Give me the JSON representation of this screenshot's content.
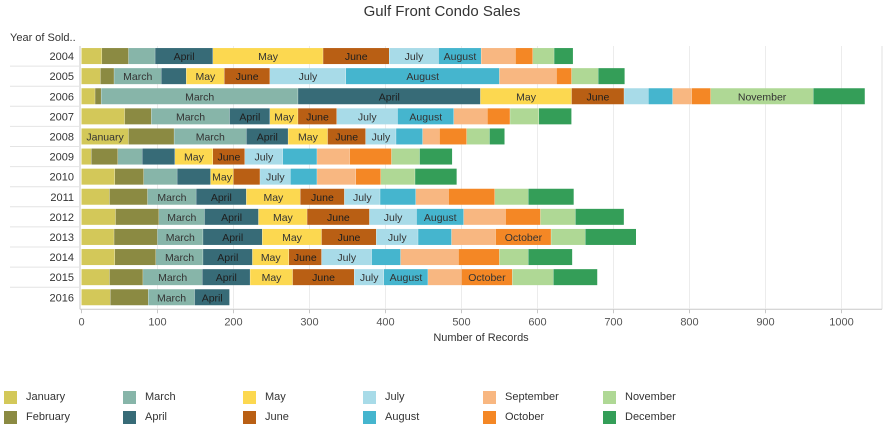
{
  "chart_data": {
    "type": "bar",
    "orientation": "horizontal",
    "stacked": true,
    "title": "Gulf Front Condo Sales",
    "ylabel": "Year of Sold..",
    "xlabel": "Number of Records",
    "xlim": [
      0,
      1050
    ],
    "xticks": [
      0,
      100,
      200,
      300,
      400,
      500,
      600,
      700,
      800,
      900,
      1000
    ],
    "grid": "vertical gridlines",
    "legend_position": "bottom",
    "categories": [
      "2004",
      "2005",
      "2006",
      "2007",
      "2008",
      "2009",
      "2010",
      "2011",
      "2012",
      "2013",
      "2014",
      "2015",
      "2016"
    ],
    "series": [
      {
        "name": "January",
        "color": "#d3c859",
        "values": [
          27,
          25,
          18,
          57,
          62,
          13,
          44,
          37,
          45,
          43,
          44,
          37,
          38
        ]
      },
      {
        "name": "February",
        "color": "#8b8a42",
        "values": [
          35,
          18,
          8,
          35,
          60,
          35,
          38,
          50,
          57,
          57,
          54,
          44,
          50
        ]
      },
      {
        "name": "March",
        "color": "#87b5a9",
        "values": [
          35,
          62,
          259,
          103,
          95,
          32,
          44,
          64,
          60,
          60,
          62,
          78,
          61
        ]
      },
      {
        "name": "April",
        "color": "#376b77",
        "values": [
          76,
          33,
          240,
          53,
          55,
          43,
          44,
          66,
          71,
          78,
          65,
          63,
          46
        ]
      },
      {
        "name": "May",
        "color": "#fcd850",
        "values": [
          145,
          50,
          120,
          37,
          52,
          50,
          30,
          71,
          64,
          78,
          48,
          56,
          0
        ]
      },
      {
        "name": "June",
        "color": "#b95f14",
        "values": [
          87,
          60,
          69,
          51,
          50,
          42,
          35,
          58,
          82,
          72,
          43,
          81,
          0
        ]
      },
      {
        "name": "July",
        "color": "#a8dbe8",
        "values": [
          65,
          100,
          32,
          80,
          40,
          50,
          40,
          47,
          62,
          55,
          66,
          39,
          0
        ]
      },
      {
        "name": "August",
        "color": "#45b5ce",
        "values": [
          56,
          202,
          32,
          74,
          35,
          45,
          35,
          47,
          62,
          44,
          38,
          58,
          0
        ]
      },
      {
        "name": "September",
        "color": "#f8b781",
        "values": [
          45,
          75,
          25,
          44,
          22,
          43,
          51,
          43,
          55,
          58,
          76,
          44,
          0
        ]
      },
      {
        "name": "October",
        "color": "#f48725",
        "values": [
          23,
          20,
          25,
          30,
          36,
          55,
          33,
          61,
          46,
          73,
          54,
          67,
          0
        ]
      },
      {
        "name": "November",
        "color": "#afd895",
        "values": [
          28,
          35,
          135,
          38,
          30,
          37,
          45,
          44,
          46,
          45,
          38,
          54,
          0
        ]
      },
      {
        "name": "December",
        "color": "#349e58",
        "values": [
          25,
          35,
          68,
          43,
          20,
          43,
          55,
          60,
          64,
          67,
          58,
          58,
          0
        ]
      }
    ]
  }
}
